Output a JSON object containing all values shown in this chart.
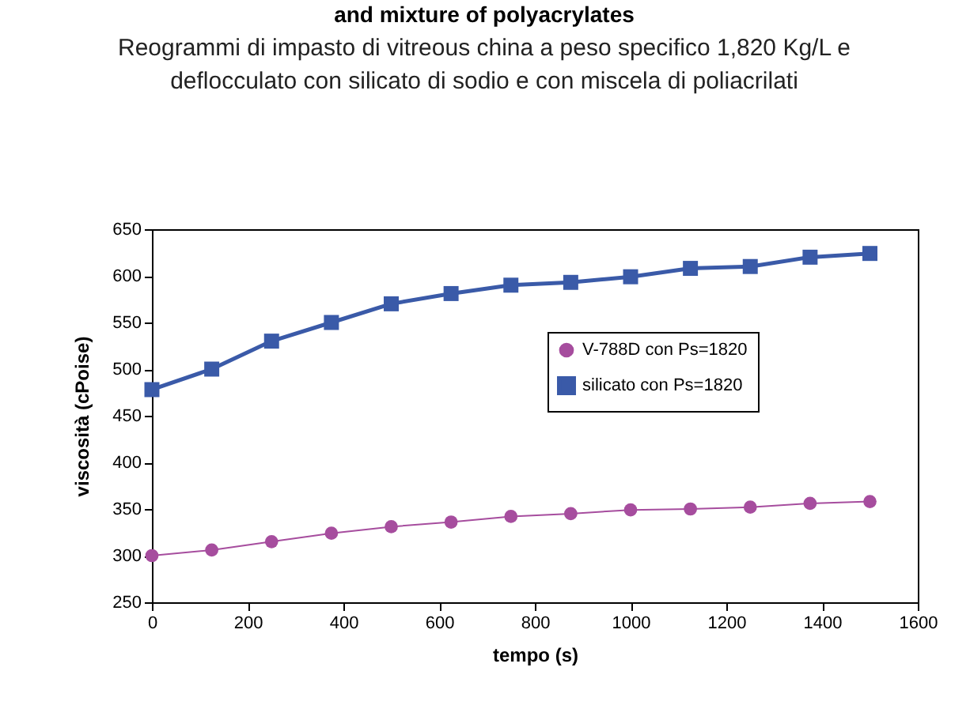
{
  "chart_data": {
    "type": "line",
    "title": "and mixture of polyacrylates",
    "subtitle": "Reogrammi di impasto di vitreous china a peso specifico 1,820 Kg/L e deflocculato con silicato di sodio e con miscela di poliacrilati",
    "xlabel": "tempo (s)",
    "ylabel": "viscosità (cPoise)",
    "x": [
      0,
      125,
      250,
      375,
      500,
      625,
      750,
      875,
      1000,
      1125,
      1250,
      1375,
      1500
    ],
    "series": [
      {
        "name": "V-788D con Ps=1820",
        "color": "#a64d9e",
        "marker": "circle",
        "values": [
          300,
          306,
          315,
          324,
          331,
          336,
          342,
          345,
          349,
          350,
          352,
          356,
          358
        ]
      },
      {
        "name": "silicato con Ps=1820",
        "color": "#3a5aa8",
        "marker": "square",
        "values": [
          478,
          500,
          530,
          550,
          570,
          581,
          590,
          593,
          599,
          608,
          610,
          620,
          624
        ]
      }
    ],
    "xlim": [
      0,
      1600
    ],
    "xticks": [
      0,
      200,
      400,
      600,
      800,
      1000,
      1200,
      1400,
      1600
    ],
    "ylim": [
      250,
      650
    ],
    "yticks": [
      250,
      300,
      350,
      400,
      450,
      500,
      550,
      600,
      650
    ],
    "grid": false,
    "legend": "top right"
  }
}
